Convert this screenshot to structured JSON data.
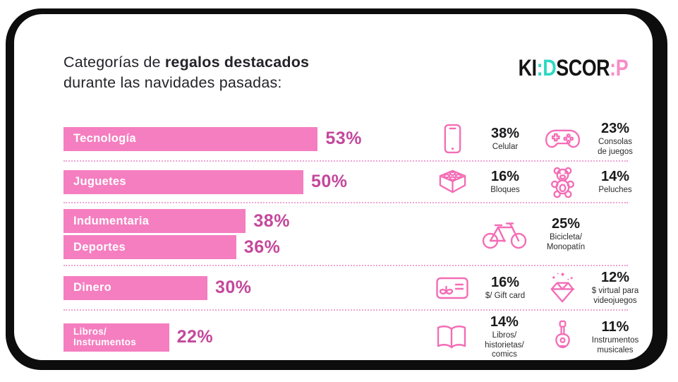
{
  "title": {
    "line1_regular": "Categorías de ",
    "line1_bold": "regalos destacados",
    "line2": "durante las navidades pasadas:"
  },
  "logo": {
    "name": "KIDSCORP",
    "segments": [
      {
        "text": "KI",
        "color": "#141414"
      },
      {
        "text": ":",
        "color": "#2ed9c3"
      },
      {
        "text": "D",
        "color": "#2ed9c3"
      },
      {
        "text": "SCOR",
        "color": "#141414"
      },
      {
        "text": ":",
        "color": "#f78cc7"
      },
      {
        "text": "P",
        "color": "#f78cc7"
      }
    ]
  },
  "colors": {
    "bar_fill": "#f57ec0",
    "bar_percent_text": "#c4489c",
    "icon_stroke": "#f46db6",
    "dotted_separator": "#efa3d1",
    "card_outline": "#0d0d0d",
    "logo_teal": "#2ed9c3",
    "logo_pink": "#f78cc7"
  },
  "chart_data": {
    "type": "bar",
    "orientation": "horizontal",
    "title": "Categorías de regalos destacados durante las navidades pasadas:",
    "categories": [
      "Tecnología",
      "Juguetes",
      "Indumentaria",
      "Deportes",
      "Dinero",
      "Libros/Instrumentos"
    ],
    "values": [
      53,
      50,
      38,
      36,
      30,
      22
    ],
    "unit": "%",
    "xlim": [
      0,
      60
    ],
    "grid": false,
    "value_labels": [
      "53%",
      "50%",
      "38%",
      "36%",
      "30%",
      "22%"
    ],
    "sub_breakdown": [
      {
        "category": "Tecnología",
        "items": [
          {
            "label": "Celular",
            "value": 38
          },
          {
            "label": "Consolas de juegos",
            "value": 23
          }
        ]
      },
      {
        "category": "Juguetes",
        "items": [
          {
            "label": "Bloques",
            "value": 16
          },
          {
            "label": "Peluches",
            "value": 14
          }
        ]
      },
      {
        "category": "Indumentaria/Deportes",
        "items": [
          {
            "label": "Bicicleta/Monopatín",
            "value": 25
          }
        ]
      },
      {
        "category": "Dinero",
        "items": [
          {
            "label": "$/ Gift card",
            "value": 16
          },
          {
            "label": "$ virtual para videojuegos",
            "value": 12
          }
        ]
      },
      {
        "category": "Libros/Instrumentos",
        "items": [
          {
            "label": "Libros/ historietas/ comics",
            "value": 14
          },
          {
            "label": "Instrumentos musicales",
            "value": 11
          }
        ]
      }
    ]
  },
  "groups": [
    {
      "bars": [
        {
          "label": "Tecnología",
          "value": 53,
          "display": "53%"
        }
      ],
      "details": [
        {
          "icon": "smartphone-icon",
          "percent": "38%",
          "label": "Celular"
        },
        {
          "icon": "gamepad-icon",
          "percent": "23%",
          "label": "Consolas\nde juegos"
        }
      ]
    },
    {
      "bars": [
        {
          "label": "Juguetes",
          "value": 50,
          "display": "50%"
        }
      ],
      "details": [
        {
          "icon": "lego-brick-icon",
          "percent": "16%",
          "label": "Bloques"
        },
        {
          "icon": "teddy-bear-icon",
          "percent": "14%",
          "label": "Peluches"
        }
      ]
    },
    {
      "bars": [
        {
          "label": "Indumentaria",
          "value": 38,
          "display": "38%"
        },
        {
          "label": "Deportes",
          "value": 36,
          "display": "36%"
        }
      ],
      "details": [
        {
          "icon": "bicycle-icon",
          "percent": "25%",
          "label": "Bicicleta/\nMonopatín",
          "wide": true
        }
      ]
    },
    {
      "bars": [
        {
          "label": "Dinero",
          "value": 30,
          "display": "30%"
        }
      ],
      "details": [
        {
          "icon": "gift-card-icon",
          "percent": "16%",
          "label": "$/ Gift card"
        },
        {
          "icon": "diamond-icon",
          "percent": "12%",
          "label": "$ virtual para\nvideojuegos"
        }
      ]
    },
    {
      "bars": [
        {
          "label": "Libros/\nInstrumentos",
          "value": 22,
          "display": "22%"
        }
      ],
      "details": [
        {
          "icon": "open-book-icon",
          "percent": "14%",
          "label": "Libros/ historietas/\ncomics"
        },
        {
          "icon": "guitar-icon",
          "percent": "11%",
          "label": "Instrumentos\nmusicales"
        }
      ]
    }
  ]
}
